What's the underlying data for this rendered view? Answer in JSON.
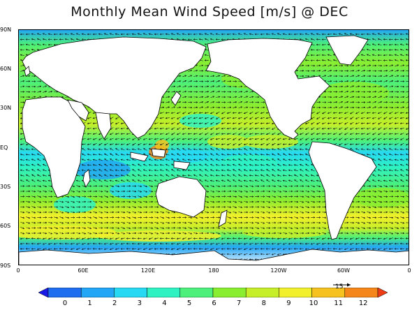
{
  "title": "Monthly Mean Wind Speed [m/s] @ DEC",
  "lat_labels": [
    "90N",
    "60N",
    "30N",
    "EQ",
    "30S",
    "60S",
    "90S"
  ],
  "lon_labels": [
    "0",
    "60E",
    "120E",
    "180",
    "120W",
    "60W",
    "0"
  ],
  "colorbar": {
    "tick_labels": [
      "0",
      "1",
      "2",
      "3",
      "4",
      "5",
      "6",
      "7",
      "8",
      "9",
      "10",
      "11",
      "12"
    ],
    "colors": [
      "#1a1ae6",
      "#1f6ef0",
      "#23a6f5",
      "#27d9f2",
      "#2ef2c2",
      "#4cf07a",
      "#8aee30",
      "#c6ef2a",
      "#f2f02a",
      "#f5c21f",
      "#f5871a",
      "#ee3d14"
    ]
  },
  "reference_vector": {
    "label": "15"
  },
  "colors": {
    "land": "#ffffff",
    "coast": "#000000",
    "arrow": "#000000"
  }
}
